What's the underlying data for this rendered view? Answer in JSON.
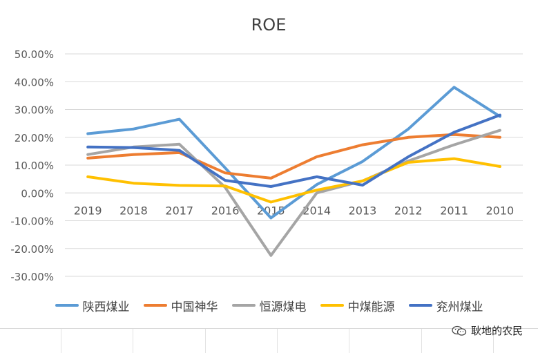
{
  "chart_data": {
    "type": "line",
    "title": "ROE",
    "categories": [
      "2019",
      "2018",
      "2017",
      "2016",
      "2015",
      "2014",
      "2013",
      "2012",
      "2011",
      "2010"
    ],
    "y_ticks": [
      "50.00%",
      "40.00%",
      "30.00%",
      "20.00%",
      "10.00%",
      "0.00%",
      "-10.00%",
      "-20.00%",
      "-30.00%"
    ],
    "ylim": [
      -30,
      50
    ],
    "y_unit": "%",
    "grid": true,
    "legend_position": "bottom",
    "series": [
      {
        "name": "陕西煤业",
        "color": "#5b9bd5",
        "values": [
          21.3,
          23.0,
          26.5,
          9.0,
          -9.0,
          3.0,
          11.3,
          23.0,
          38.0,
          27.5
        ]
      },
      {
        "name": "中国神华",
        "color": "#ed7d31",
        "values": [
          12.5,
          13.8,
          14.5,
          7.2,
          5.3,
          13.0,
          17.3,
          20.0,
          21.0,
          20.0
        ]
      },
      {
        "name": "恒源煤电",
        "color": "#a5a5a5",
        "values": [
          13.8,
          16.5,
          17.5,
          2.0,
          -22.5,
          0.0,
          4.3,
          11.5,
          17.3,
          22.5
        ]
      },
      {
        "name": "中煤能源",
        "color": "#ffc000",
        "values": [
          5.8,
          3.5,
          2.7,
          2.5,
          -3.3,
          1.0,
          4.3,
          11.0,
          12.3,
          9.5
        ]
      },
      {
        "name": "兖州煤业",
        "color": "#4472c4",
        "values": [
          16.5,
          16.3,
          15.3,
          4.5,
          2.3,
          5.8,
          2.8,
          13.0,
          21.8,
          28.0
        ]
      }
    ]
  },
  "watermark": {
    "text": "耿地的农民",
    "icon": "wechat-icon"
  }
}
